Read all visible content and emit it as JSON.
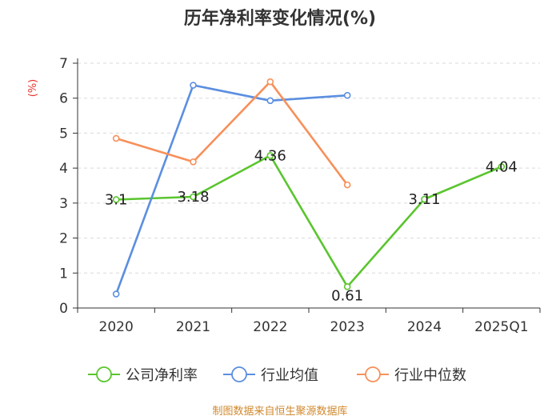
{
  "chart_data": {
    "type": "line",
    "title": "历年净利率变化情况(%)",
    "ylabel": "(%)",
    "xlabel": "",
    "ylim": [
      0,
      7
    ],
    "yticks": [
      0,
      1,
      2,
      3,
      4,
      5,
      6,
      7
    ],
    "categories": [
      "2020",
      "2021",
      "2022",
      "2023",
      "2024",
      "2025Q1"
    ],
    "grid": true,
    "legend_position": "bottom",
    "series": [
      {
        "name": "公司净利率",
        "color": "#5ac52e",
        "values": [
          3.1,
          3.18,
          4.36,
          0.61,
          3.11,
          4.04
        ],
        "labels": [
          "3.1",
          "3.18",
          "4.36",
          "0.61",
          "3.11",
          "4.04"
        ]
      },
      {
        "name": "行业均值",
        "color": "#5b8fe0",
        "values": [
          0.4,
          6.37,
          5.93,
          6.08,
          null,
          null
        ]
      },
      {
        "name": "行业中位数",
        "color": "#f7905a",
        "values": [
          4.85,
          4.18,
          6.47,
          3.52,
          null,
          null
        ]
      }
    ],
    "source": "制图数据来自恒生聚源数据库"
  }
}
